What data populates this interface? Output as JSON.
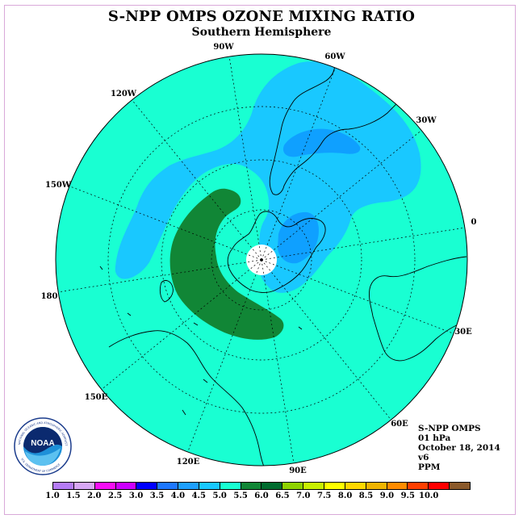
{
  "header": {
    "title": "S-NPP OMPS OZONE MIXING RATIO",
    "subtitle": "Southern Hemisphere"
  },
  "map": {
    "projection": "south polar stereographic",
    "longitude_labels": [
      "90W",
      "60W",
      "30W",
      "0",
      "30E",
      "60E",
      "90E",
      "120E",
      "150E",
      "180",
      "150W",
      "120W"
    ],
    "colors": {
      "background_field": "#19ffd2",
      "band_4_to_4_5": "#19c8ff",
      "band_3_5_to_4": "#0fa0ff",
      "band_5_to_5_5": "#118636",
      "pole_cap": "#ffffff"
    }
  },
  "info": {
    "line1": "S-NPP OMPS",
    "line2": "01 hPa",
    "line3": "October 18, 2014",
    "line4": "v6",
    "line5": "PPM"
  },
  "logo": {
    "name": "NOAA",
    "ring_text": "NATIONAL OCEANIC AND ATMOSPHERIC ADMINISTRATION",
    "bottom_text": "U.S. DEPARTMENT OF COMMERCE"
  },
  "colorbar": {
    "colors": [
      "#b57cf5",
      "#d8a8f5",
      "#f50ff5",
      "#cc00ff",
      "#0000ff",
      "#1e78ff",
      "#1ea0ff",
      "#19c8ff",
      "#19ffd2",
      "#118636",
      "#006c2e",
      "#8ed200",
      "#c8f000",
      "#ffff00",
      "#ffd800",
      "#f0b400",
      "#ff8c00",
      "#ff4000",
      "#ff0000",
      "#8b5a2b"
    ],
    "ticks": [
      "1.0",
      "1.5",
      "2.0",
      "2.5",
      "3.0",
      "3.5",
      "4.0",
      "4.5",
      "5.0",
      "5.5",
      "6.0",
      "6.5",
      "7.0",
      "7.5",
      "8.0",
      "8.5",
      "9.0",
      "9.5",
      "10.0"
    ]
  }
}
